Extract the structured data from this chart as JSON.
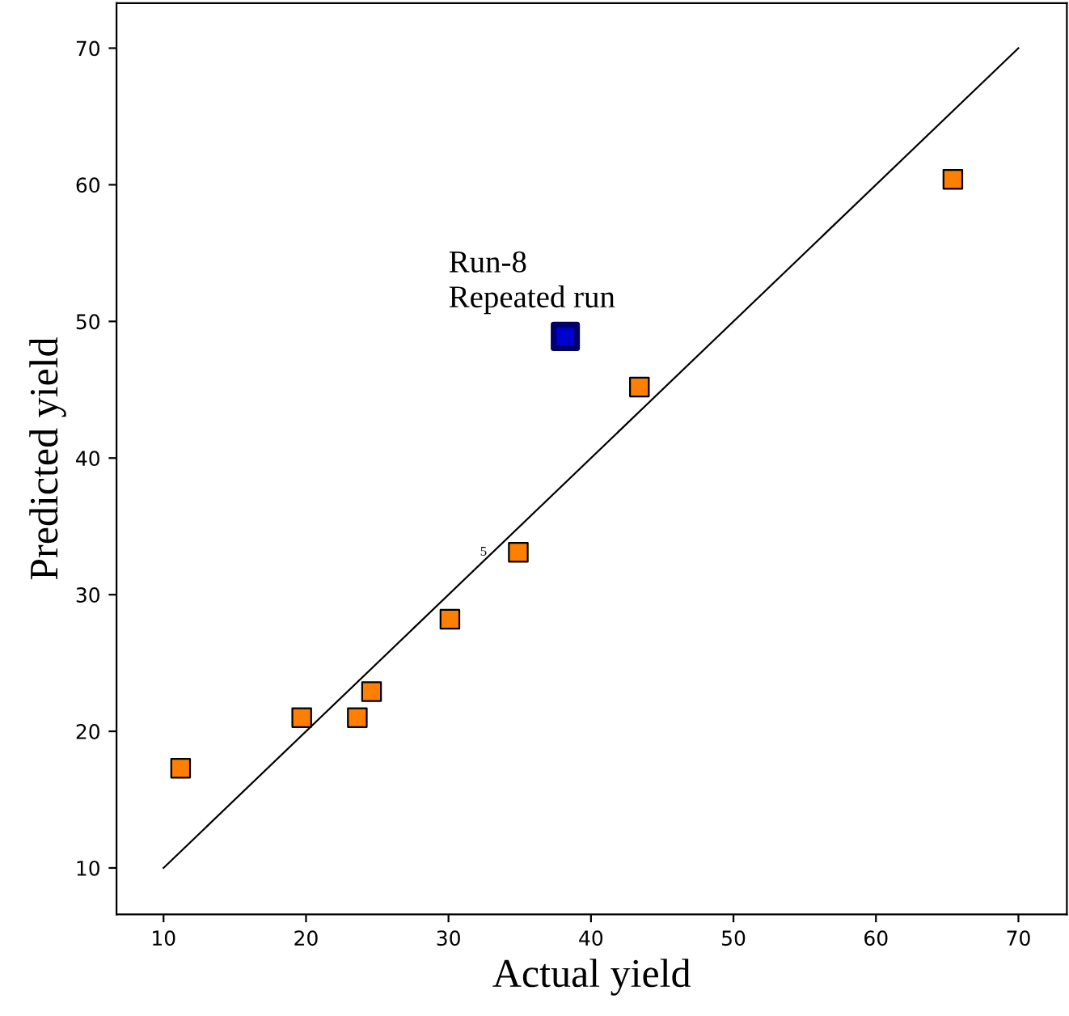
{
  "chart_data": {
    "type": "scatter",
    "xlabel": "Actual yield",
    "ylabel": "Predicted yield",
    "xlim": [
      6.7,
      73.4
    ],
    "ylim": [
      6.6,
      73.3
    ],
    "xticks": [
      10,
      20,
      30,
      40,
      50,
      60,
      70
    ],
    "yticks": [
      10,
      20,
      30,
      40,
      50,
      60,
      70
    ],
    "grid": false,
    "legend": false,
    "marker": "square",
    "series": [
      {
        "type": "line",
        "color": "#000000",
        "x": [
          10,
          70
        ],
        "values": [
          10,
          70
        ],
        "marker": "none",
        "line_style": "solid"
      },
      {
        "color": "#ff8000",
        "x": [
          11.2,
          19.7,
          23.6,
          24.6,
          30.1,
          34.9,
          43.4,
          65.4
        ],
        "values": [
          17.3,
          21,
          21,
          22.9,
          28.2,
          33.1,
          45.2,
          60.4
        ]
      },
      {
        "color": "#0000cc",
        "x": [
          38.2
        ],
        "values": [
          48.9
        ]
      }
    ],
    "annotations": [
      {
        "text": "Run-8\nRepeated run",
        "x": 38.2,
        "y": 48.9
      },
      {
        "text": "5",
        "x": 34.9,
        "y": 33.1
      }
    ]
  }
}
